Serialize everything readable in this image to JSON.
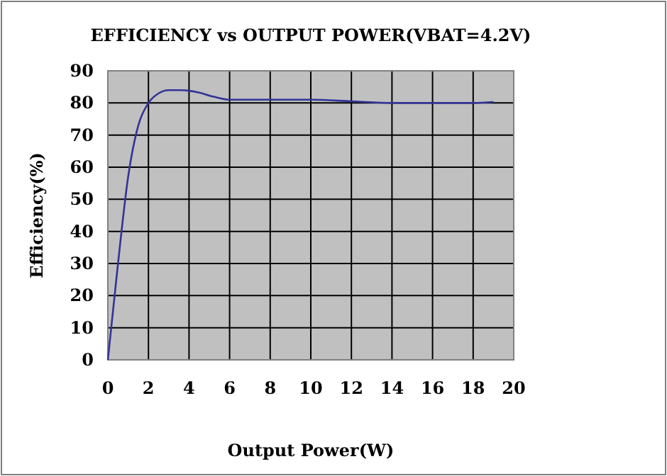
{
  "chart_data": {
    "type": "line",
    "title": "EFFICIENCY vs OUTPUT POWER(VBAT=4.2V)",
    "xlabel": "Output Power(W)",
    "ylabel": "Efficiency(%)",
    "x": [
      0,
      0.5,
      1,
      1.5,
      2,
      2.5,
      3,
      3.5,
      4,
      4.5,
      5,
      6,
      8,
      10,
      12,
      14,
      16,
      18,
      19
    ],
    "series": [
      {
        "color": "#333399",
        "values": [
          0,
          30,
          57,
          73,
          80,
          83,
          84,
          84,
          83.8,
          83.2,
          82.3,
          81,
          81,
          81,
          80.5,
          80,
          80,
          80,
          80.3
        ]
      }
    ],
    "xlim": [
      0,
      20
    ],
    "xticks": [
      0,
      2,
      4,
      6,
      8,
      10,
      12,
      14,
      16,
      18,
      20
    ],
    "ylim": [
      0,
      90
    ],
    "yticks": [
      0,
      10,
      20,
      30,
      40,
      50,
      60,
      70,
      80,
      90
    ],
    "grid": true,
    "marker": "none",
    "line_style": "solid"
  }
}
